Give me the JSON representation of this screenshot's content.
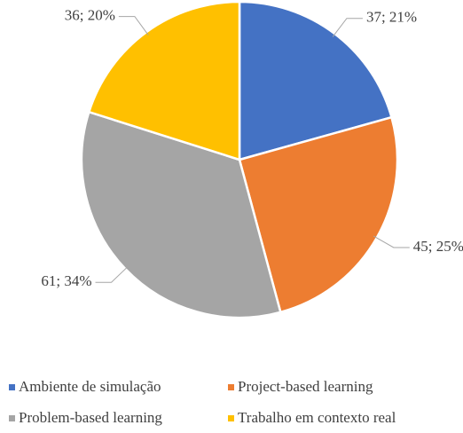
{
  "chart_data": {
    "type": "pie",
    "categories": [
      "Ambiente de simulação",
      "Project-based learning",
      "Problem-based learning",
      "Trabalho em contexto real"
    ],
    "values": [
      37,
      45,
      61,
      36
    ],
    "value_labels": [
      "37; 21%",
      "45; 25%",
      "61; 34%",
      "36; 20%"
    ],
    "colors": [
      "#4472c4",
      "#ed7d31",
      "#a5a5a5",
      "#ffc000"
    ],
    "legend": "bottom"
  }
}
